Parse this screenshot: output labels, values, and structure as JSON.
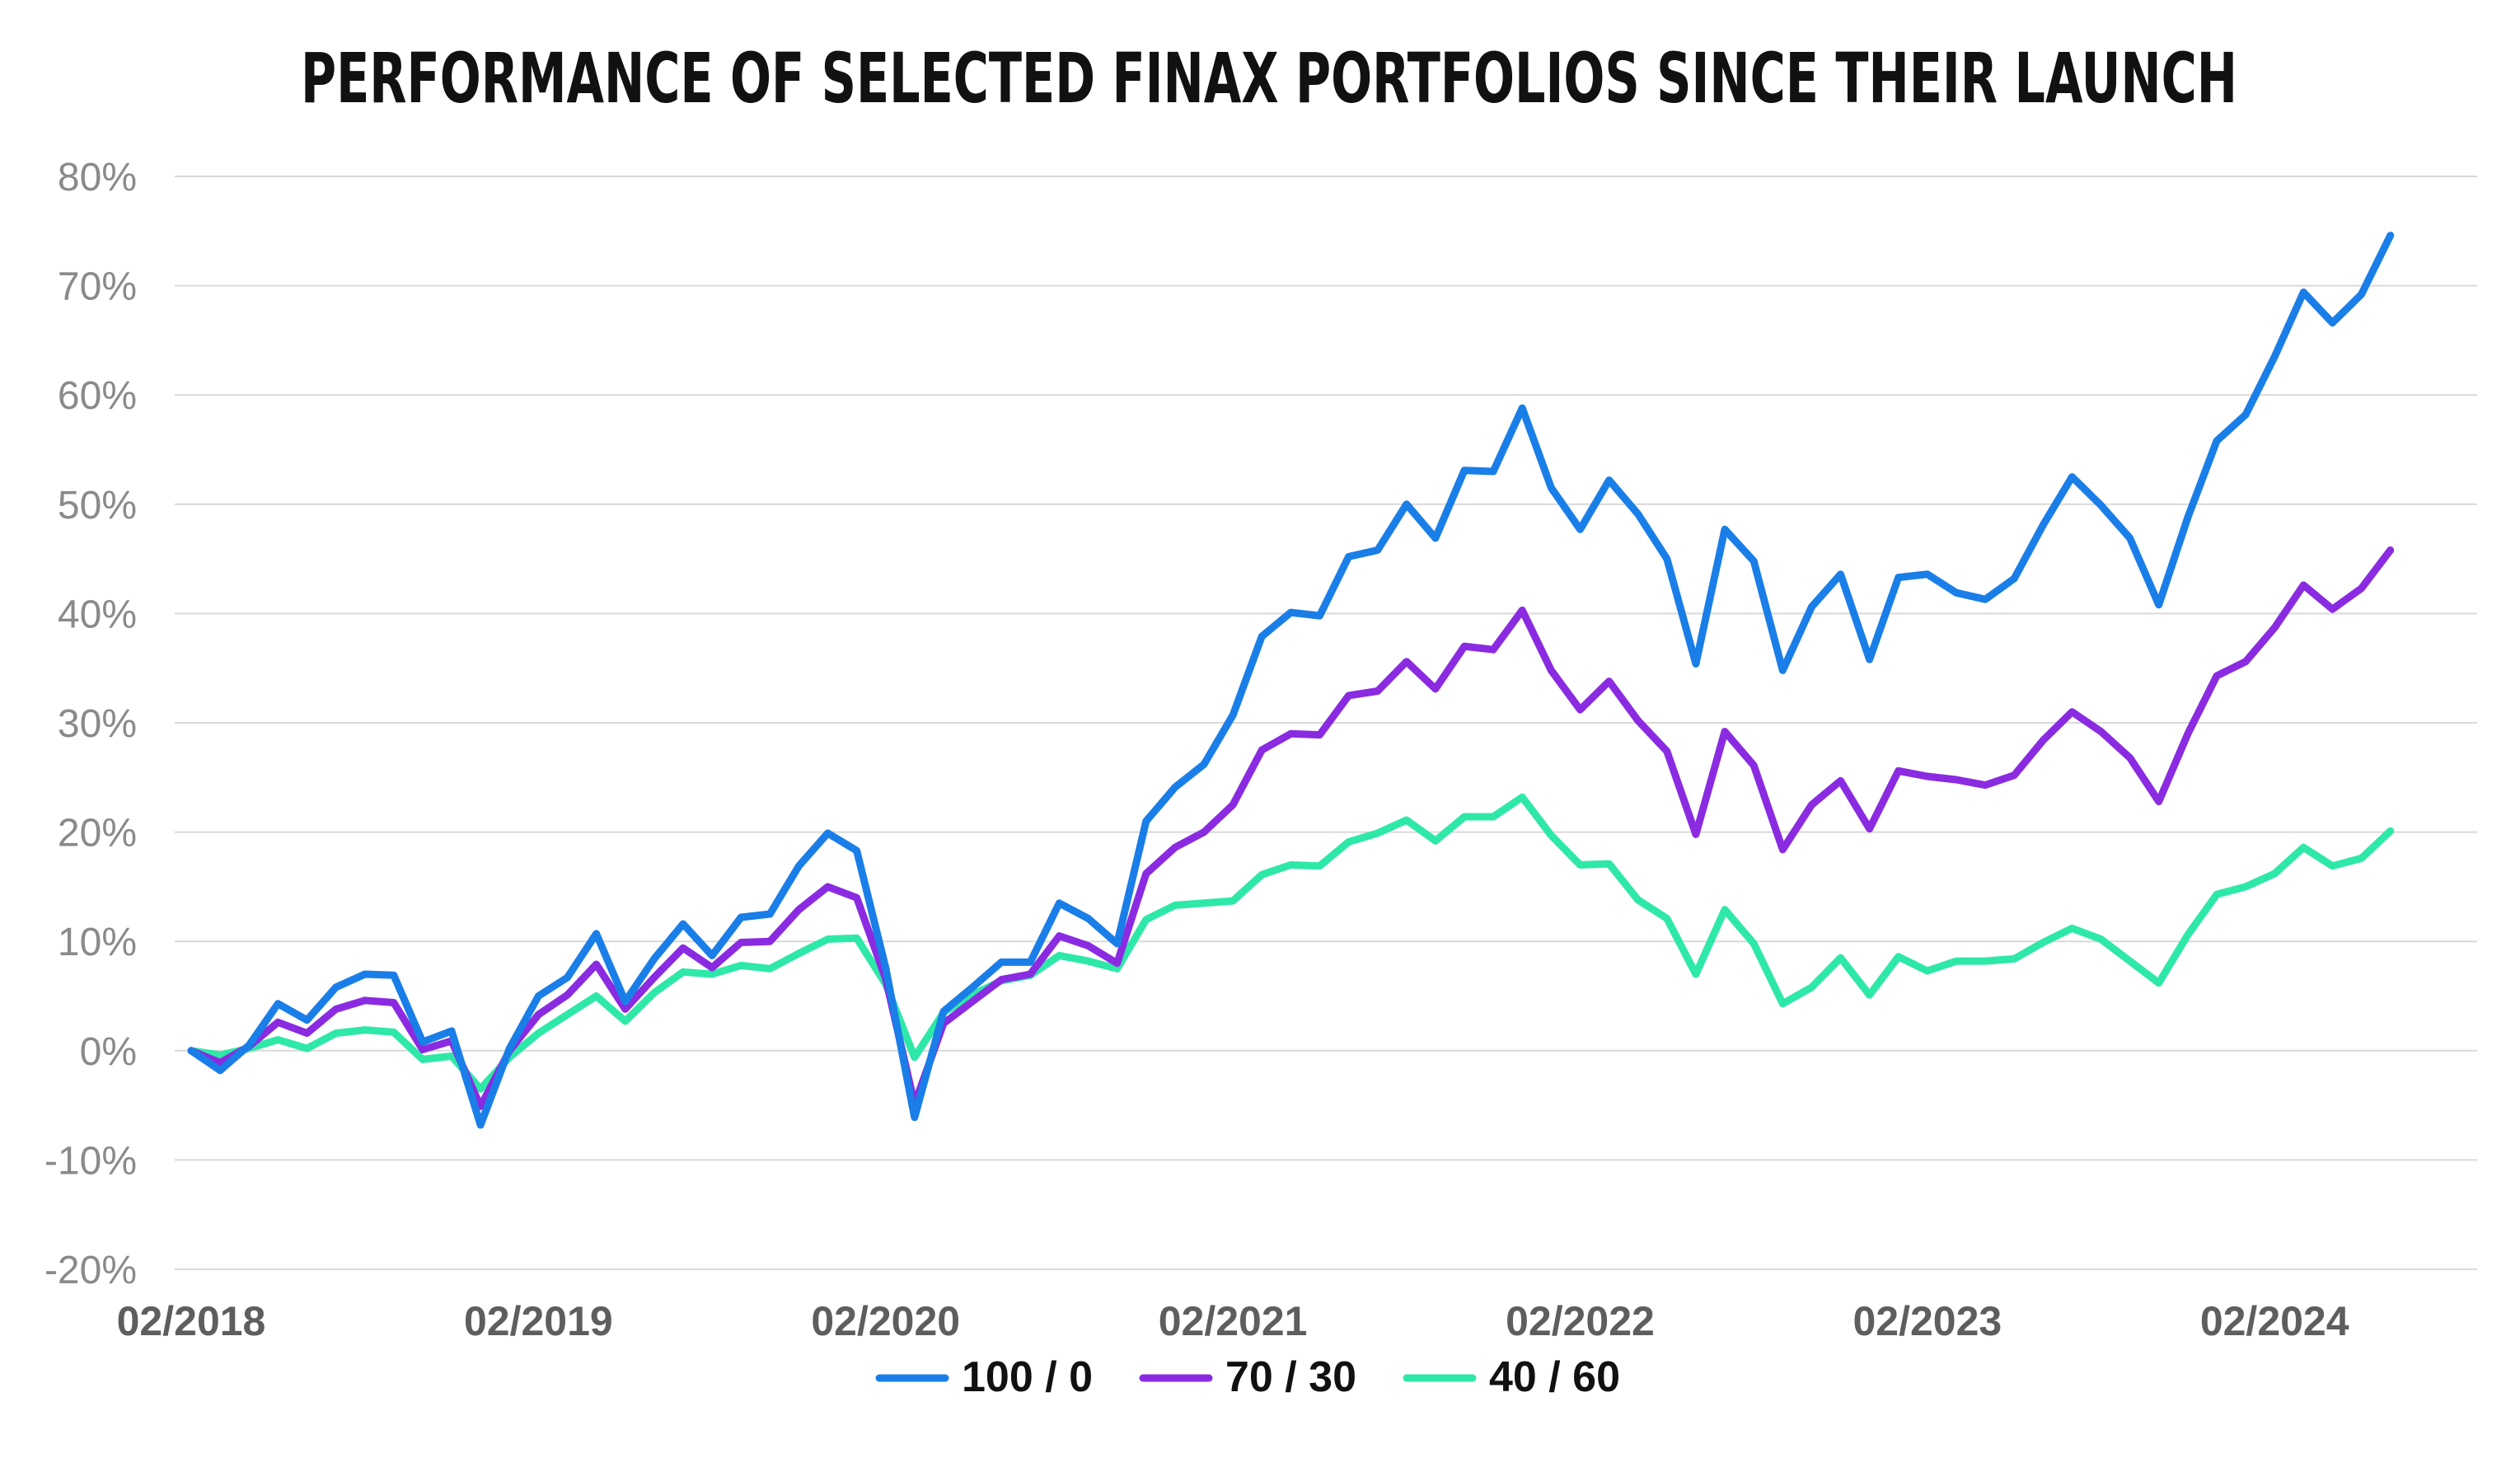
{
  "chart_data": {
    "type": "line",
    "title": "PERFORMANCE OF SELECTED FINAX PORTFOLIOS SINCE THEIR LAUNCH",
    "xlabel": "",
    "ylabel": "",
    "x_tick_labels": [
      "02/2018",
      "02/2019",
      "02/2020",
      "02/2021",
      "02/2022",
      "02/2023",
      "02/2024"
    ],
    "y_tick_labels": [
      "80%",
      "70%",
      "60%",
      "50%",
      "40%",
      "30%",
      "20%",
      "10%",
      "0%",
      "-10%",
      "-20%"
    ],
    "ylim": [
      -20,
      80
    ],
    "y_unit": "%",
    "x_start": "2018-02",
    "x_end": "2024-09",
    "grid": "horizontal",
    "legend_position": "bottom-center",
    "series": [
      {
        "name": "100 / 0",
        "color": "#1a7ee8",
        "values": [
          0.0,
          -1.8,
          0.5,
          4.3,
          2.8,
          5.8,
          7.0,
          6.9,
          0.8,
          1.8,
          -6.8,
          0.2,
          5.0,
          6.7,
          10.7,
          4.5,
          8.4,
          11.6,
          8.7,
          12.2,
          12.5,
          16.9,
          19.9,
          18.3,
          7.6,
          -6.1,
          3.6,
          5.8,
          8.1,
          8.1,
          13.5,
          12.1,
          9.8,
          21.0,
          24.1,
          26.2,
          30.7,
          37.9,
          40.1,
          39.8,
          45.2,
          45.8,
          50.0,
          46.9,
          53.1,
          53.0,
          58.8,
          51.5,
          47.7,
          52.2,
          49.1,
          45.0,
          35.4,
          47.7,
          44.8,
          34.8,
          40.6,
          43.6,
          35.8,
          43.3,
          43.6,
          41.9,
          41.3,
          43.2,
          48.1,
          52.5,
          49.9,
          46.9,
          40.8,
          48.8,
          55.8,
          58.2,
          63.5,
          69.4,
          66.6,
          69.2,
          74.6
        ]
      },
      {
        "name": "70 / 30",
        "color": "#8a2be2",
        "values": [
          0.0,
          -1.1,
          0.4,
          2.6,
          1.6,
          3.8,
          4.6,
          4.4,
          0.1,
          0.9,
          -5.1,
          0.0,
          3.3,
          5.1,
          7.9,
          3.8,
          6.7,
          9.4,
          7.6,
          9.9,
          10.0,
          12.9,
          15.0,
          14.0,
          6.6,
          -4.9,
          2.5,
          4.5,
          6.5,
          7.0,
          10.5,
          9.6,
          8.0,
          16.2,
          18.6,
          20.0,
          22.5,
          27.5,
          29.0,
          28.9,
          32.5,
          32.9,
          35.6,
          33.1,
          37.0,
          36.7,
          40.3,
          34.8,
          31.2,
          33.8,
          30.2,
          27.4,
          19.8,
          29.2,
          26.1,
          18.4,
          22.5,
          24.7,
          20.3,
          25.6,
          25.1,
          24.8,
          24.3,
          25.2,
          28.4,
          31.0,
          29.2,
          26.8,
          22.8,
          29.0,
          34.3,
          35.6,
          38.7,
          42.6,
          40.4,
          42.3,
          45.8
        ]
      },
      {
        "name": "40 / 60",
        "color": "#2ee8a8",
        "values": [
          0.0,
          -0.4,
          0.2,
          1.0,
          0.2,
          1.6,
          1.9,
          1.7,
          -0.8,
          -0.5,
          -3.5,
          -0.6,
          1.6,
          3.3,
          5.0,
          2.7,
          5.3,
          7.2,
          7.0,
          7.8,
          7.5,
          8.9,
          10.2,
          10.3,
          6.1,
          -0.6,
          3.5,
          5.1,
          6.4,
          6.9,
          8.7,
          8.2,
          7.5,
          12.0,
          13.3,
          13.5,
          13.7,
          16.1,
          17.0,
          16.9,
          19.1,
          19.9,
          21.1,
          19.2,
          21.4,
          21.4,
          23.2,
          19.7,
          17.0,
          17.1,
          13.8,
          12.1,
          7.0,
          12.9,
          9.8,
          4.3,
          5.8,
          8.5,
          5.1,
          8.6,
          7.3,
          8.2,
          8.2,
          8.4,
          9.9,
          11.2,
          10.2,
          8.2,
          6.2,
          10.6,
          14.3,
          15.0,
          16.2,
          18.6,
          16.9,
          17.6,
          20.1
        ]
      }
    ]
  }
}
